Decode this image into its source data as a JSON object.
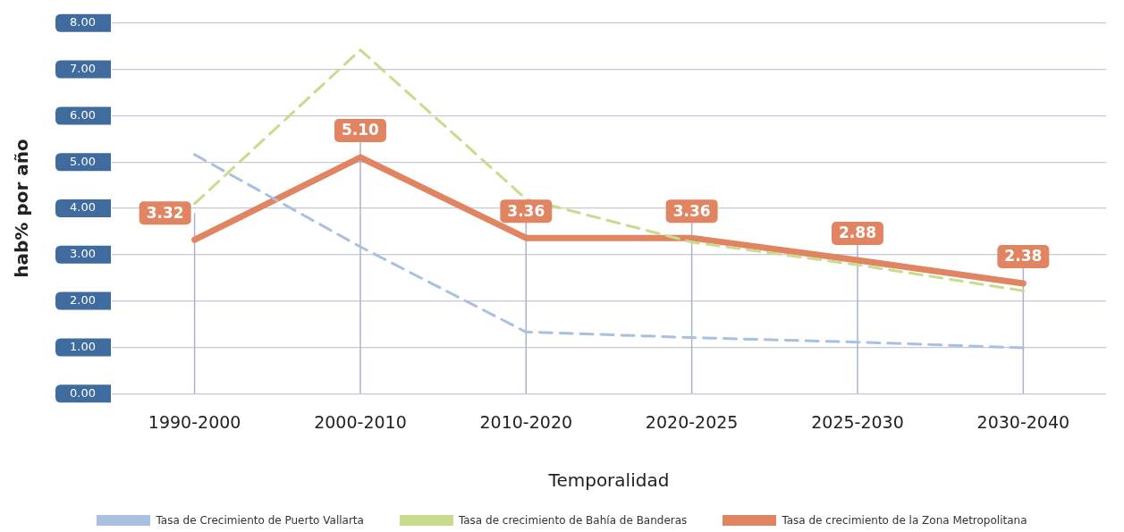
{
  "chart_data": {
    "type": "line",
    "xlabel": "Temporalidad",
    "ylabel": "hab% por año",
    "categories": [
      "1990-2000",
      "2000-2010",
      "2010-2020",
      "2020-2025",
      "2025-2030",
      "2030-2040"
    ],
    "series": [
      {
        "name": "Tasa de Crecimiento de Puerto Vallarta",
        "color": "#a9c0e0",
        "line_style": "dashed",
        "values": [
          5.16,
          3.17,
          1.33,
          1.21,
          1.11,
          0.99
        ]
      },
      {
        "name": "Tasa de crecimiento de Bahía de Banderas",
        "color": "#c7dc8c",
        "line_style": "dashed",
        "values": [
          4.1,
          7.42,
          4.2,
          3.27,
          2.78,
          2.22
        ]
      },
      {
        "name": "Tasa de crecimiento de la Zona Metropolitana",
        "color": "#e08462",
        "line_style": "solid",
        "values": [
          3.32,
          5.1,
          3.36,
          3.36,
          2.88,
          2.38
        ],
        "value_labels": [
          "3.32",
          "5.10",
          "3.36",
          "3.36",
          "2.88",
          "2.38"
        ]
      }
    ],
    "ylim": [
      0,
      8
    ],
    "yticks": [
      {
        "value": 0,
        "label": "0.00"
      },
      {
        "value": 1,
        "label": "1.00"
      },
      {
        "value": 2,
        "label": "2.00"
      },
      {
        "value": 3,
        "label": "3.00"
      },
      {
        "value": 4,
        "label": "4.00"
      },
      {
        "value": 5,
        "label": "5.00"
      },
      {
        "value": 6,
        "label": "6.00"
      },
      {
        "value": 7,
        "label": "7.00"
      },
      {
        "value": 8,
        "label": "8.00"
      }
    ],
    "grid": "y",
    "marker": "none",
    "legend": "bottom"
  }
}
